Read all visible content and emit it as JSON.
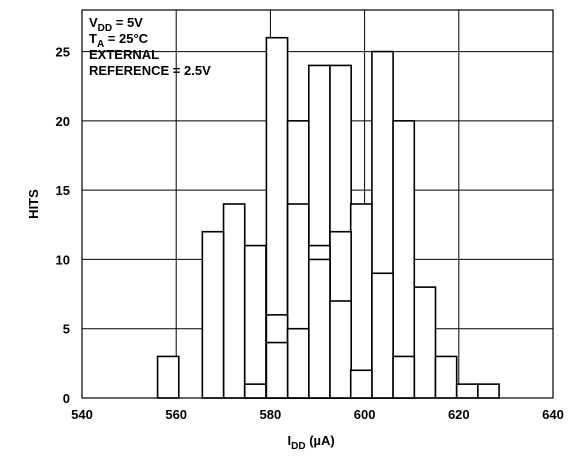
{
  "chart_data": {
    "type": "bar",
    "title": "",
    "xlabel": {
      "main": "I",
      "sub": "DD",
      "unit": " (µA)"
    },
    "ylabel": "HITS",
    "xlim": [
      540,
      640
    ],
    "ylim": [
      0,
      28
    ],
    "x_ticks": [
      540,
      560,
      580,
      600,
      620,
      640
    ],
    "y_ticks": [
      0,
      5,
      10,
      15,
      20,
      25
    ],
    "grid": true,
    "bar_width": 4.5,
    "bars": [
      {
        "x": 558.3,
        "value": 3
      },
      {
        "x": 567.8,
        "value": 12
      },
      {
        "x": 572.3,
        "value": 14
      },
      {
        "x": 576.8,
        "value": 1
      },
      {
        "x": 576.8,
        "value": 11
      },
      {
        "x": 581.4,
        "value": 4
      },
      {
        "x": 581.4,
        "value": 6
      },
      {
        "x": 581.4,
        "value": 26
      },
      {
        "x": 585.9,
        "value": 5
      },
      {
        "x": 585.9,
        "value": 14
      },
      {
        "x": 585.9,
        "value": 20
      },
      {
        "x": 590.4,
        "value": 10
      },
      {
        "x": 590.4,
        "value": 11
      },
      {
        "x": 590.4,
        "value": 24
      },
      {
        "x": 594.9,
        "value": 7
      },
      {
        "x": 594.9,
        "value": 12
      },
      {
        "x": 594.9,
        "value": 24
      },
      {
        "x": 599.3,
        "value": 2
      },
      {
        "x": 599.3,
        "value": 14
      },
      {
        "x": 603.8,
        "value": 9
      },
      {
        "x": 603.8,
        "value": 25
      },
      {
        "x": 608.3,
        "value": 3
      },
      {
        "x": 608.3,
        "value": 20
      },
      {
        "x": 612.8,
        "value": 8
      },
      {
        "x": 617.3,
        "value": 3
      },
      {
        "x": 621.8,
        "value": 1
      },
      {
        "x": 626.3,
        "value": 1
      }
    ],
    "annotation": [
      {
        "main": "V",
        "sub": "DD",
        "rest": " = 5V"
      },
      {
        "main": "T",
        "sub": "A",
        "rest": " = 25°C"
      },
      {
        "main": "EXTERNAL",
        "sub": "",
        "rest": ""
      },
      {
        "main": "REFERENCE = 2.5V",
        "sub": "",
        "rest": ""
      }
    ]
  }
}
